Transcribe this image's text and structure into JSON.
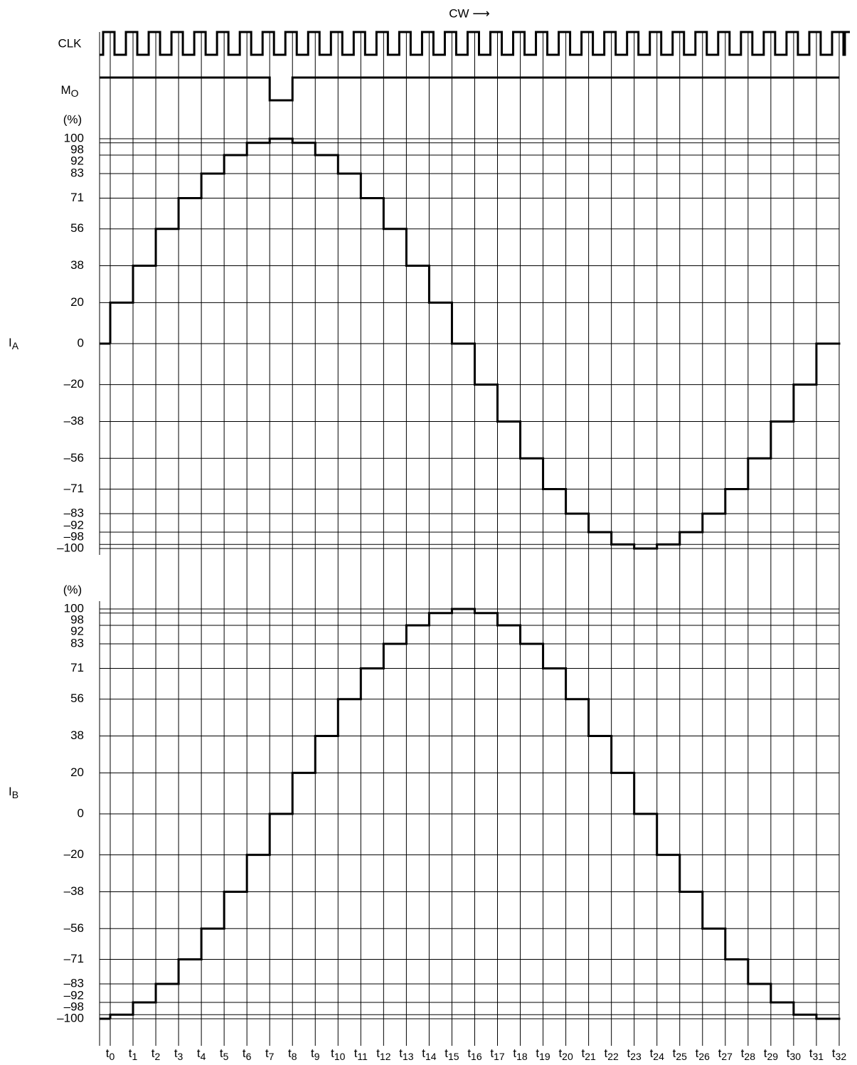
{
  "cw_label": "CW ⟶",
  "clk_label": "CLK",
  "mo_label": {
    "symbol": "M",
    "sub": "O"
  },
  "x_axis": {
    "symbol": "t",
    "categories": [
      "0",
      "1",
      "2",
      "3",
      "4",
      "5",
      "6",
      "7",
      "8",
      "9",
      "10",
      "11",
      "12",
      "13",
      "14",
      "15",
      "16",
      "17",
      "18",
      "19",
      "20",
      "21",
      "22",
      "23",
      "24",
      "25",
      "26",
      "27",
      "28",
      "29",
      "30",
      "31",
      "32"
    ]
  },
  "chart_data": [
    {
      "type": "step",
      "ylabel": {
        "symbol": "I",
        "sub": "A"
      },
      "unit": "(%)",
      "ylim": [
        -100,
        100
      ],
      "yticks": [
        100,
        98,
        92,
        83,
        71,
        56,
        38,
        20,
        0,
        {
          "value": -20,
          "label": "–20"
        },
        {
          "value": -38,
          "label": "–38"
        },
        {
          "value": -56,
          "label": "–56"
        },
        {
          "value": -71,
          "label": "–71"
        },
        {
          "value": -83,
          "label": "–83"
        },
        {
          "value": -92,
          "label": "–92"
        },
        {
          "value": -98,
          "label": "–98"
        },
        {
          "value": -100,
          "label": "–100"
        }
      ],
      "start_value": 0,
      "values": [
        20,
        38,
        56,
        71,
        83,
        92,
        98,
        100,
        98,
        92,
        83,
        71,
        56,
        38,
        20,
        0,
        -20,
        -38,
        -56,
        -71,
        -83,
        -92,
        -98,
        -100,
        -98,
        -92,
        -83,
        -71,
        -56,
        -38,
        -20,
        0,
        null
      ],
      "color": "#000000"
    },
    {
      "type": "step",
      "ylabel": {
        "symbol": "I",
        "sub": "B"
      },
      "unit": "(%)",
      "ylim": [
        -100,
        100
      ],
      "yticks": [
        100,
        98,
        92,
        83,
        71,
        56,
        38,
        20,
        0,
        {
          "value": -20,
          "label": "–20"
        },
        {
          "value": -38,
          "label": "–38"
        },
        {
          "value": -56,
          "label": "–56"
        },
        {
          "value": -71,
          "label": "–71"
        },
        {
          "value": -83,
          "label": "–83"
        },
        {
          "value": -92,
          "label": "–92"
        },
        {
          "value": -98,
          "label": "–98"
        },
        {
          "value": -100,
          "label": "–100"
        }
      ],
      "start_value": -100,
      "values": [
        -98,
        -92,
        -83,
        -71,
        -56,
        -38,
        -20,
        0,
        20,
        38,
        56,
        71,
        83,
        92,
        98,
        100,
        98,
        92,
        83,
        71,
        56,
        38,
        20,
        0,
        -20,
        -38,
        -56,
        -71,
        -83,
        -92,
        -98,
        -100,
        null
      ],
      "color": "#000000"
    }
  ]
}
